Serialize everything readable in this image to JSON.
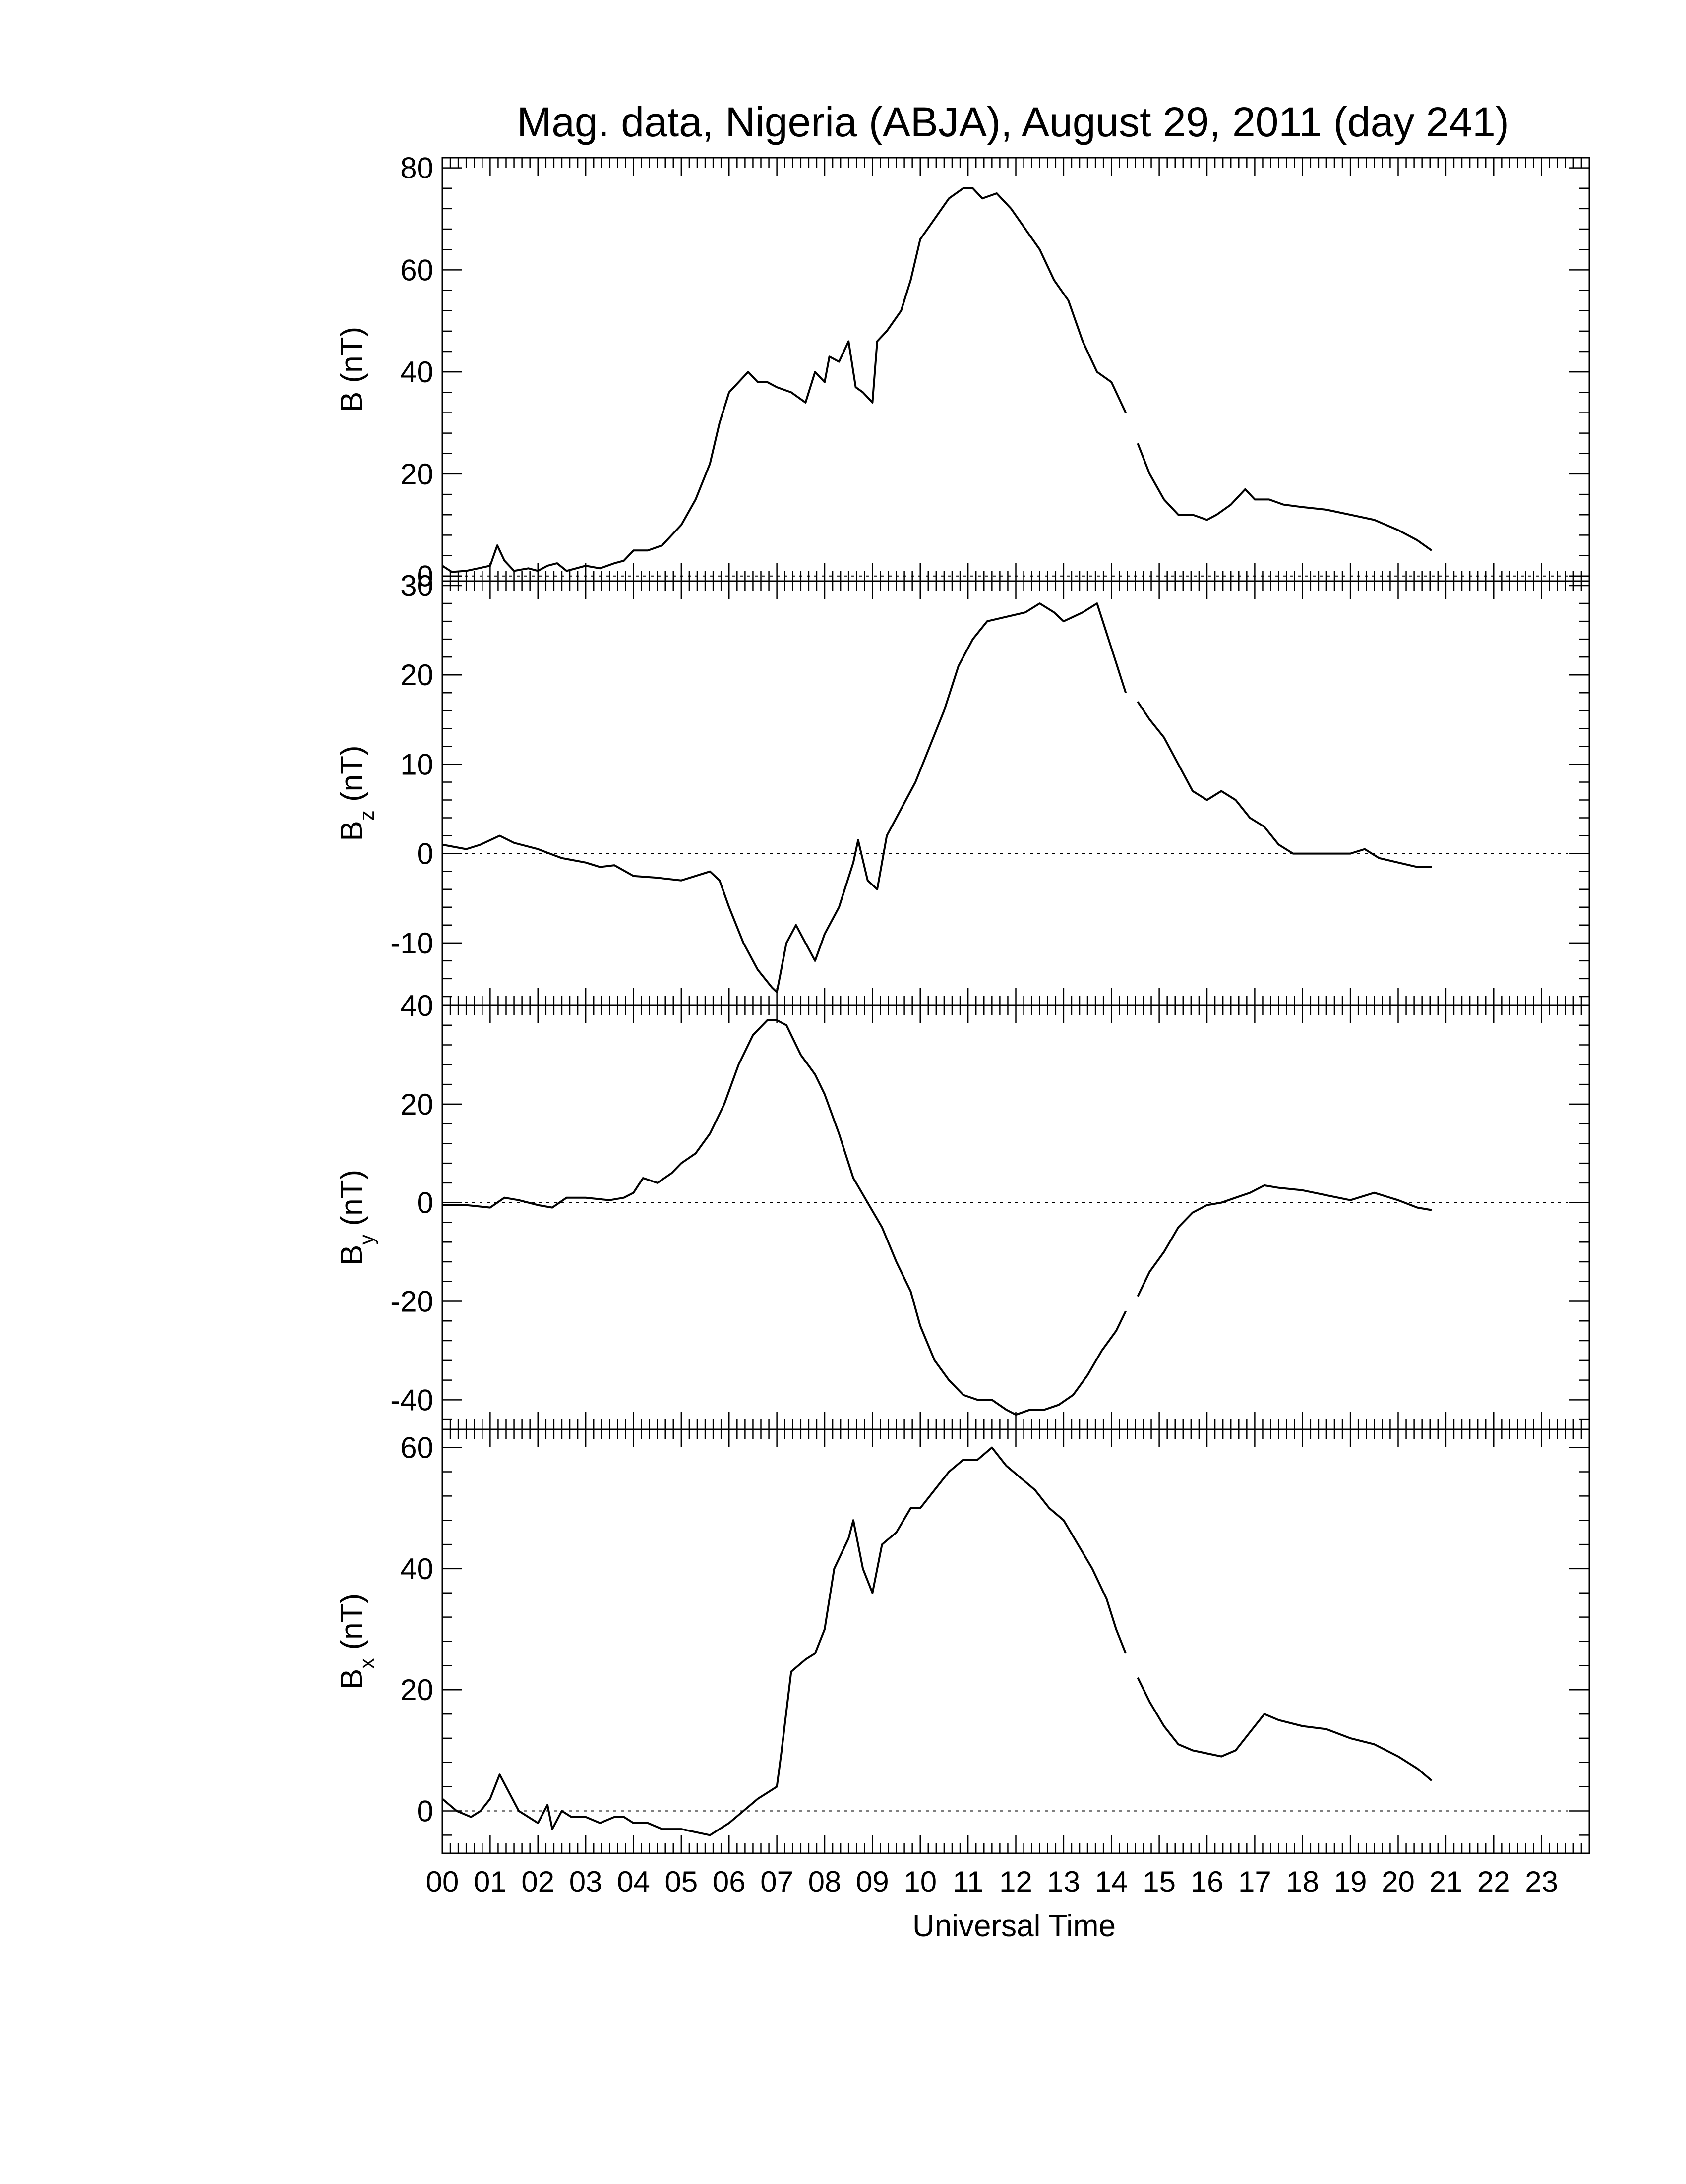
{
  "chart_data": {
    "type": "line",
    "title": "Mag. data, Nigeria (ABJA), August 29, 2011 (day 241)",
    "xlabel": "Universal Time",
    "xlim": [
      0,
      24
    ],
    "x_tick_labels": [
      "00",
      "01",
      "02",
      "03",
      "04",
      "05",
      "06",
      "07",
      "08",
      "09",
      "10",
      "11",
      "12",
      "13",
      "14",
      "15",
      "16",
      "17",
      "18",
      "19",
      "20",
      "21",
      "22",
      "23"
    ],
    "data_gap": [
      14.3,
      14.55
    ],
    "panels": [
      {
        "id": "B",
        "ylabel_main": "B",
        "ylabel_sub": "",
        "ylabel_unit": "(nT)",
        "ylim": [
          -1,
          82
        ],
        "yticks": [
          0,
          20,
          40,
          60,
          80
        ],
        "zero_line": true,
        "series": [
          {
            "x": [
              0.0,
              0.2,
              0.5,
              0.75,
              1.0,
              1.15,
              1.3,
              1.5,
              1.8,
              2.0,
              2.2,
              2.4,
              2.6,
              2.8,
              3.0,
              3.3,
              3.6,
              3.8,
              4.0,
              4.3,
              4.6,
              4.8,
              5.0,
              5.3,
              5.6,
              5.8,
              6.0,
              6.2,
              6.4,
              6.6,
              6.8,
              7.0,
              7.3,
              7.6,
              7.8,
              8.0,
              8.1,
              8.3,
              8.5,
              8.65,
              8.8,
              9.0,
              9.1,
              9.3,
              9.6,
              9.8,
              10.0,
              10.3,
              10.6,
              10.9,
              11.1,
              11.3,
              11.6,
              11.9,
              12.2,
              12.5,
              12.8,
              13.1,
              13.4,
              13.7,
              14.0,
              14.3,
              14.55,
              14.8,
              15.1,
              15.4,
              15.7,
              16.0,
              16.2,
              16.5,
              16.8,
              17.0,
              17.3,
              17.6,
              18.0,
              18.5,
              19.0,
              19.5,
              20.0,
              20.4,
              20.7
            ],
            "values": [
              2,
              0.8,
              1,
              1.5,
              2,
              6,
              3,
              1,
              1.5,
              1,
              2,
              2.5,
              1,
              1.5,
              2,
              1.5,
              2.5,
              3,
              5,
              5,
              6,
              8,
              10,
              15,
              22,
              30,
              36,
              38,
              40,
              38,
              38,
              37,
              36,
              34,
              40,
              38,
              43,
              42,
              46,
              37,
              36,
              34,
              46,
              48,
              52,
              58,
              66,
              70,
              74,
              76,
              76,
              74,
              75,
              72,
              68,
              64,
              58,
              54,
              46,
              40,
              38,
              32,
              26,
              20,
              15,
              12,
              12,
              11,
              12,
              14,
              17,
              15,
              15,
              14,
              13.5,
              13,
              12,
              11,
              9,
              7,
              5
            ]
          }
        ]
      },
      {
        "id": "Bz",
        "ylabel_main": "B",
        "ylabel_sub": "z",
        "ylabel_unit": "(nT)",
        "ylim": [
          -17,
          30.5
        ],
        "yticks": [
          -10,
          0,
          10,
          20,
          30
        ],
        "zero_line": true,
        "series": [
          {
            "x": [
              0.0,
              0.5,
              0.8,
              1.0,
              1.2,
              1.5,
              2.0,
              2.5,
              3.0,
              3.3,
              3.6,
              4.0,
              4.5,
              5.0,
              5.3,
              5.6,
              5.8,
              6.0,
              6.3,
              6.6,
              6.9,
              7.0,
              7.2,
              7.4,
              7.6,
              7.8,
              8.0,
              8.3,
              8.6,
              8.7,
              8.9,
              9.1,
              9.3,
              9.6,
              9.9,
              10.2,
              10.5,
              10.8,
              11.1,
              11.4,
              11.8,
              12.2,
              12.5,
              12.8,
              13.0,
              13.4,
              13.7,
              14.0,
              14.3,
              14.55,
              14.8,
              15.1,
              15.4,
              15.7,
              16.0,
              16.3,
              16.6,
              16.9,
              17.2,
              17.5,
              17.8,
              18.1,
              18.5,
              19.0,
              19.3,
              19.6,
              20.0,
              20.4,
              20.7
            ],
            "values": [
              1,
              0.5,
              1,
              1.5,
              2,
              1.2,
              0.5,
              -0.5,
              -1,
              -1.5,
              -1.3,
              -2.5,
              -2.7,
              -3,
              -2.5,
              -2,
              -3,
              -6,
              -10,
              -13,
              -15,
              -15.5,
              -10,
              -8,
              -10,
              -12,
              -9,
              -6,
              -1,
              1.5,
              -3,
              -4,
              2,
              5,
              8,
              12,
              16,
              21,
              24,
              26,
              26.5,
              27,
              28,
              27,
              26,
              27,
              28,
              23,
              18,
              17,
              15,
              13,
              10,
              7,
              6,
              7,
              6,
              4,
              3,
              1,
              0,
              0,
              0,
              0,
              0.5,
              -0.5,
              -1,
              -1.5,
              -1.5
            ]
          }
        ]
      },
      {
        "id": "By",
        "ylabel_main": "B",
        "ylabel_sub": "y",
        "ylabel_unit": "(nT)",
        "ylim": [
          -46,
          40
        ],
        "yticks": [
          -40,
          -20,
          0,
          20,
          40
        ],
        "zero_line": true,
        "series": [
          {
            "x": [
              0.0,
              0.5,
              1.0,
              1.3,
              1.6,
              2.0,
              2.3,
              2.6,
              3.0,
              3.5,
              3.8,
              4.0,
              4.2,
              4.5,
              4.8,
              5.0,
              5.3,
              5.6,
              5.9,
              6.2,
              6.5,
              6.8,
              7.0,
              7.2,
              7.5,
              7.8,
              8.0,
              8.3,
              8.6,
              8.9,
              9.2,
              9.5,
              9.8,
              10.0,
              10.3,
              10.6,
              10.9,
              11.2,
              11.5,
              11.8,
              12.0,
              12.3,
              12.6,
              12.9,
              13.2,
              13.5,
              13.8,
              14.1,
              14.3,
              14.55,
              14.8,
              15.1,
              15.4,
              15.7,
              16.0,
              16.3,
              16.6,
              16.9,
              17.2,
              17.5,
              18.0,
              18.5,
              19.0,
              19.5,
              20.0,
              20.4,
              20.7
            ],
            "values": [
              -0.5,
              -0.5,
              -1,
              1,
              0.5,
              -0.5,
              -1,
              1,
              1,
              0.5,
              1,
              2,
              5,
              4,
              6,
              8,
              10,
              14,
              20,
              28,
              34,
              37,
              37,
              36,
              30,
              26,
              22,
              14,
              5,
              0,
              -5,
              -12,
              -18,
              -25,
              -32,
              -36,
              -39,
              -40,
              -40,
              -42,
              -43,
              -42,
              -42,
              -41,
              -39,
              -35,
              -30,
              -26,
              -22,
              -19,
              -14,
              -10,
              -5,
              -2,
              -0.5,
              0,
              1,
              2,
              3.5,
              3,
              2.5,
              1.5,
              0.5,
              2,
              0.5,
              -1,
              -1.5
            ]
          }
        ]
      },
      {
        "id": "Bx",
        "ylabel_main": "B",
        "ylabel_sub": "x",
        "ylabel_unit": "(nT)",
        "ylim": [
          -7,
          63
        ],
        "yticks": [
          0,
          20,
          40,
          60
        ],
        "zero_line": true,
        "series": [
          {
            "x": [
              0.0,
              0.3,
              0.6,
              0.8,
              1.0,
              1.2,
              1.4,
              1.6,
              1.8,
              2.0,
              2.2,
              2.3,
              2.5,
              2.7,
              3.0,
              3.3,
              3.6,
              3.8,
              4.0,
              4.3,
              4.6,
              5.0,
              5.3,
              5.6,
              5.8,
              6.0,
              6.3,
              6.6,
              6.8,
              7.0,
              7.1,
              7.3,
              7.6,
              7.8,
              8.0,
              8.2,
              8.5,
              8.6,
              8.8,
              9.0,
              9.2,
              9.5,
              9.8,
              10.0,
              10.3,
              10.6,
              10.9,
              11.2,
              11.5,
              11.8,
              12.1,
              12.4,
              12.7,
              13.0,
              13.3,
              13.6,
              13.9,
              14.1,
              14.3,
              14.55,
              14.8,
              15.1,
              15.4,
              15.7,
              16.0,
              16.3,
              16.6,
              16.9,
              17.2,
              17.5,
              18.0,
              18.5,
              19.0,
              19.5,
              20.0,
              20.4,
              20.7
            ],
            "values": [
              2,
              0,
              -1,
              0,
              2,
              6,
              3,
              0,
              -1,
              -2,
              1,
              -3,
              0,
              -1,
              -1,
              -2,
              -1,
              -1,
              -2,
              -2,
              -3,
              -3,
              -3.5,
              -4,
              -3,
              -2,
              0,
              2,
              3,
              4,
              10,
              23,
              25,
              26,
              30,
              40,
              45,
              48,
              40,
              36,
              44,
              46,
              50,
              50,
              53,
              56,
              58,
              58,
              60,
              57,
              55,
              53,
              50,
              48,
              44,
              40,
              35,
              30,
              26,
              22,
              18,
              14,
              11,
              10,
              9.5,
              9,
              10,
              13,
              16,
              15,
              14,
              13.5,
              12,
              11,
              9,
              7,
              5
            ]
          }
        ]
      }
    ]
  }
}
